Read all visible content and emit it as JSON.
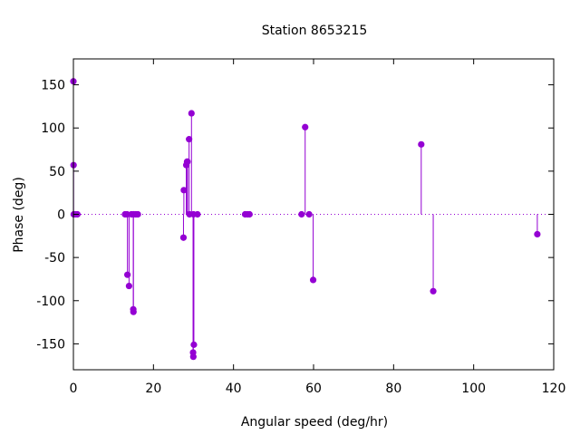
{
  "chart_data": {
    "type": "scatter",
    "style": "impulses-with-points",
    "title": "Station 8653215",
    "xlabel": "Angular speed (deg/hr)",
    "ylabel": "Phase (deg)",
    "xlim": [
      0,
      120
    ],
    "ylim": [
      -180,
      180
    ],
    "x_ticks": [
      0,
      20,
      40,
      60,
      80,
      100,
      120
    ],
    "y_ticks": [
      -150,
      -100,
      -50,
      0,
      50,
      100,
      150
    ],
    "zero_line": "dotted",
    "grid": false,
    "color": "#9400d3",
    "points": [
      {
        "x": 0.0,
        "y": 154
      },
      {
        "x": 0.04,
        "y": 57
      },
      {
        "x": 0.08,
        "y": 0
      },
      {
        "x": 0.5,
        "y": 0
      },
      {
        "x": 1.0,
        "y": 0
      },
      {
        "x": 12.9,
        "y": 0
      },
      {
        "x": 13.4,
        "y": 0
      },
      {
        "x": 13.5,
        "y": -70
      },
      {
        "x": 13.9,
        "y": -83
      },
      {
        "x": 14.5,
        "y": 0
      },
      {
        "x": 14.96,
        "y": -110
      },
      {
        "x": 15.0,
        "y": -113
      },
      {
        "x": 15.04,
        "y": 0
      },
      {
        "x": 15.6,
        "y": 0
      },
      {
        "x": 16.1,
        "y": 0
      },
      {
        "x": 27.5,
        "y": -27
      },
      {
        "x": 27.6,
        "y": 28
      },
      {
        "x": 28.2,
        "y": 57
      },
      {
        "x": 28.4,
        "y": 61
      },
      {
        "x": 28.5,
        "y": 61
      },
      {
        "x": 28.9,
        "y": 87
      },
      {
        "x": 29.0,
        "y": 0
      },
      {
        "x": 29.5,
        "y": 117
      },
      {
        "x": 29.9,
        "y": -160
      },
      {
        "x": 29.96,
        "y": -165
      },
      {
        "x": 30.0,
        "y": 0
      },
      {
        "x": 30.1,
        "y": -151
      },
      {
        "x": 31.0,
        "y": 0
      },
      {
        "x": 42.9,
        "y": 0
      },
      {
        "x": 43.5,
        "y": 0
      },
      {
        "x": 44.0,
        "y": 0
      },
      {
        "x": 57.0,
        "y": 0
      },
      {
        "x": 57.9,
        "y": 101
      },
      {
        "x": 58.9,
        "y": 0
      },
      {
        "x": 59.9,
        "y": -76
      },
      {
        "x": 86.9,
        "y": 81
      },
      {
        "x": 89.9,
        "y": -89
      },
      {
        "x": 115.9,
        "y": -23
      }
    ]
  }
}
